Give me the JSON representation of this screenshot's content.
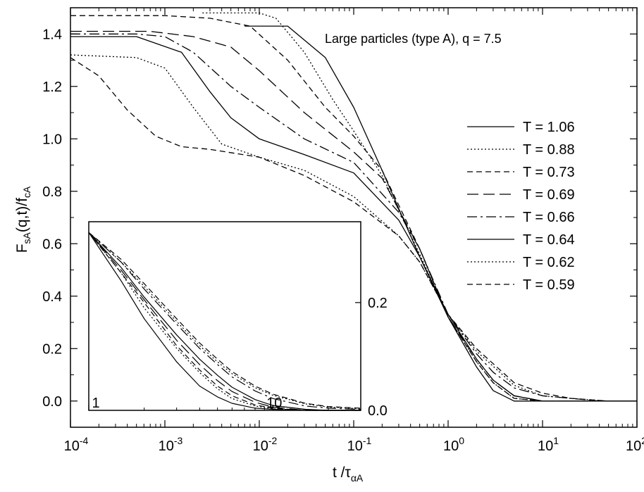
{
  "chart_data": [
    {
      "type": "line",
      "annotation": "Large particles (type A), q = 7.5",
      "xlabel": {
        "main": "t /",
        "greek": "τ",
        "sub": "αA"
      },
      "ylabel": {
        "f1": "F",
        "s1": "sA",
        "mid": "(q,t)/f",
        "s2": "cA"
      },
      "xscale": "log",
      "xlim": [
        0.0001,
        100
      ],
      "ylim": [
        -0.1,
        1.5
      ],
      "xticks": [
        {
          "value": 0.0001,
          "base": "10",
          "exp": "-4"
        },
        {
          "value": 0.001,
          "base": "10",
          "exp": "-3"
        },
        {
          "value": 0.01,
          "base": "10",
          "exp": "-2"
        },
        {
          "value": 0.1,
          "base": "10",
          "exp": "-1"
        },
        {
          "value": 1,
          "base": "10",
          "exp": "0"
        },
        {
          "value": 10,
          "base": "10",
          "exp": "1"
        },
        {
          "value": 100,
          "base": "10",
          "exp": "2"
        }
      ],
      "yticks": [
        "0.0",
        "0.2",
        "0.4",
        "0.6",
        "0.8",
        "1.0",
        "1.2",
        "1.4"
      ],
      "legend_position": "right",
      "series": [
        {
          "name": "T = 1.06",
          "dash": "solid",
          "x": [
            0.007,
            0.02,
            0.05,
            0.1,
            0.2,
            0.5,
            1,
            2,
            3,
            5,
            10,
            100
          ],
          "y": [
            1.43,
            1.43,
            1.31,
            1.12,
            0.88,
            0.55,
            0.32,
            0.13,
            0.04,
            0.0,
            0.0,
            0.0
          ]
        },
        {
          "name": "T = 0.88",
          "dash": "dotted",
          "x": [
            0.0025,
            0.01,
            0.015,
            0.03,
            0.06,
            0.1,
            0.2,
            0.5,
            1,
            2,
            3,
            5,
            10,
            100
          ],
          "y": [
            1.48,
            1.48,
            1.46,
            1.33,
            1.15,
            1.03,
            0.86,
            0.56,
            0.32,
            0.15,
            0.07,
            0.01,
            0.0,
            0.0
          ]
        },
        {
          "name": "T = 0.73",
          "dash": "dashed",
          "x": [
            0.0001,
            0.001,
            0.003,
            0.008,
            0.02,
            0.05,
            0.1,
            0.2,
            0.5,
            1,
            2,
            3,
            5,
            10,
            20,
            100
          ],
          "y": [
            1.47,
            1.47,
            1.46,
            1.43,
            1.3,
            1.12,
            1.01,
            0.88,
            0.58,
            0.32,
            0.15,
            0.07,
            0.01,
            0.0,
            0.0,
            0.0
          ]
        },
        {
          "name": "T = 0.69",
          "dash": "longdash",
          "x": [
            0.0001,
            0.0007,
            0.002,
            0.005,
            0.01,
            0.03,
            0.1,
            0.2,
            0.5,
            1,
            2,
            3,
            5,
            10,
            20,
            100
          ],
          "y": [
            1.41,
            1.41,
            1.39,
            1.35,
            1.26,
            1.1,
            0.95,
            0.85,
            0.58,
            0.32,
            0.16,
            0.08,
            0.02,
            0.0,
            0.0,
            0.0
          ]
        },
        {
          "name": "T = 0.66",
          "dash": "dashdot",
          "x": [
            0.0001,
            0.0005,
            0.001,
            0.002,
            0.005,
            0.01,
            0.03,
            0.1,
            0.3,
            0.5,
            1,
            2,
            3,
            5,
            10,
            20,
            40,
            100
          ],
          "y": [
            1.4,
            1.4,
            1.39,
            1.33,
            1.2,
            1.12,
            1.0,
            0.91,
            0.72,
            0.58,
            0.33,
            0.18,
            0.11,
            0.05,
            0.02,
            0.01,
            0.0,
            0.0
          ]
        },
        {
          "name": "T = 0.64",
          "dash": "solid",
          "x": [
            0.0001,
            0.0005,
            0.0015,
            0.003,
            0.005,
            0.01,
            0.03,
            0.1,
            0.3,
            0.5,
            1,
            2,
            3,
            5,
            10,
            20,
            100
          ],
          "y": [
            1.39,
            1.39,
            1.33,
            1.18,
            1.08,
            1.0,
            0.94,
            0.87,
            0.69,
            0.55,
            0.33,
            0.16,
            0.08,
            0.02,
            0.0,
            0.0,
            0.0
          ]
        },
        {
          "name": "T = 0.62",
          "dash": "dotted",
          "x": [
            0.0001,
            0.0005,
            0.001,
            0.002,
            0.004,
            0.01,
            0.03,
            0.1,
            0.3,
            0.5,
            1,
            2,
            5,
            10,
            20,
            50,
            100
          ],
          "y": [
            1.32,
            1.31,
            1.27,
            1.12,
            0.98,
            0.93,
            0.88,
            0.78,
            0.63,
            0.53,
            0.33,
            0.19,
            0.06,
            0.02,
            0.01,
            0.0,
            0.0
          ]
        },
        {
          "name": "T = 0.59",
          "dash": "dashed",
          "x": [
            0.0001,
            0.0002,
            0.0004,
            0.0008,
            0.0015,
            0.003,
            0.01,
            0.03,
            0.1,
            0.3,
            0.5,
            1,
            2,
            5,
            10,
            20,
            50,
            100
          ],
          "y": [
            1.31,
            1.24,
            1.11,
            1.01,
            0.97,
            0.96,
            0.93,
            0.86,
            0.76,
            0.63,
            0.53,
            0.33,
            0.2,
            0.07,
            0.03,
            0.01,
            0.0,
            0.0
          ]
        }
      ]
    },
    {
      "type": "line",
      "inset": true,
      "xscale": "log",
      "xlim": [
        1,
        30
      ],
      "ylim": [
        0.0,
        0.35
      ],
      "xticks": [
        "1",
        "10"
      ],
      "yticks": [
        "0.0",
        "0.2"
      ],
      "series": [
        {
          "name": "T = 1.06",
          "dash": "solid",
          "x": [
            1,
            1.5,
            2,
            3,
            4,
            5,
            6,
            8,
            10,
            15,
            20,
            30
          ],
          "y": [
            0.33,
            0.24,
            0.17,
            0.09,
            0.045,
            0.025,
            0.013,
            0.004,
            0.002,
            0.0,
            0.0,
            0.0
          ]
        },
        {
          "name": "T = 0.88",
          "dash": "dotted",
          "x": [
            1,
            1.5,
            2,
            3,
            4,
            5,
            6,
            8,
            10,
            15,
            20,
            30
          ],
          "y": [
            0.33,
            0.255,
            0.19,
            0.115,
            0.07,
            0.04,
            0.022,
            0.008,
            0.003,
            0.0,
            0.0,
            0.0
          ]
        },
        {
          "name": "T = 0.73",
          "dash": "dashed",
          "x": [
            1,
            1.5,
            2,
            3,
            4,
            5,
            6,
            8,
            10,
            15,
            20,
            30
          ],
          "y": [
            0.33,
            0.255,
            0.2,
            0.12,
            0.075,
            0.045,
            0.027,
            0.01,
            0.004,
            0.0,
            0.0,
            0.0
          ]
        },
        {
          "name": "T = 0.69",
          "dash": "longdash",
          "x": [
            1,
            1.5,
            2,
            3,
            4,
            5,
            6,
            8,
            10,
            15,
            20,
            30
          ],
          "y": [
            0.33,
            0.26,
            0.205,
            0.13,
            0.085,
            0.055,
            0.035,
            0.015,
            0.006,
            0.0,
            0.0,
            0.0
          ]
        },
        {
          "name": "T = 0.66",
          "dash": "dashdot",
          "x": [
            1,
            1.5,
            2,
            3,
            4,
            5,
            6,
            8,
            10,
            15,
            20,
            30
          ],
          "y": [
            0.33,
            0.275,
            0.225,
            0.16,
            0.115,
            0.085,
            0.062,
            0.036,
            0.022,
            0.008,
            0.004,
            0.002
          ]
        },
        {
          "name": "T = 0.64",
          "dash": "solid",
          "x": [
            1,
            1.5,
            2,
            3,
            4,
            5,
            6,
            8,
            10,
            15,
            20,
            30
          ],
          "y": [
            0.33,
            0.265,
            0.21,
            0.14,
            0.095,
            0.065,
            0.043,
            0.02,
            0.009,
            0.002,
            0.0,
            0.0
          ]
        },
        {
          "name": "T = 0.62",
          "dash": "dotted",
          "x": [
            1,
            1.5,
            2,
            3,
            4,
            5,
            6,
            8,
            10,
            15,
            20,
            30
          ],
          "y": [
            0.33,
            0.275,
            0.23,
            0.165,
            0.12,
            0.09,
            0.068,
            0.042,
            0.028,
            0.012,
            0.006,
            0.003
          ]
        },
        {
          "name": "T = 0.59",
          "dash": "dashed",
          "x": [
            1,
            1.5,
            2,
            3,
            4,
            5,
            6,
            8,
            10,
            15,
            20,
            30
          ],
          "y": [
            0.33,
            0.28,
            0.235,
            0.17,
            0.125,
            0.095,
            0.072,
            0.045,
            0.03,
            0.013,
            0.007,
            0.004
          ]
        }
      ]
    }
  ]
}
